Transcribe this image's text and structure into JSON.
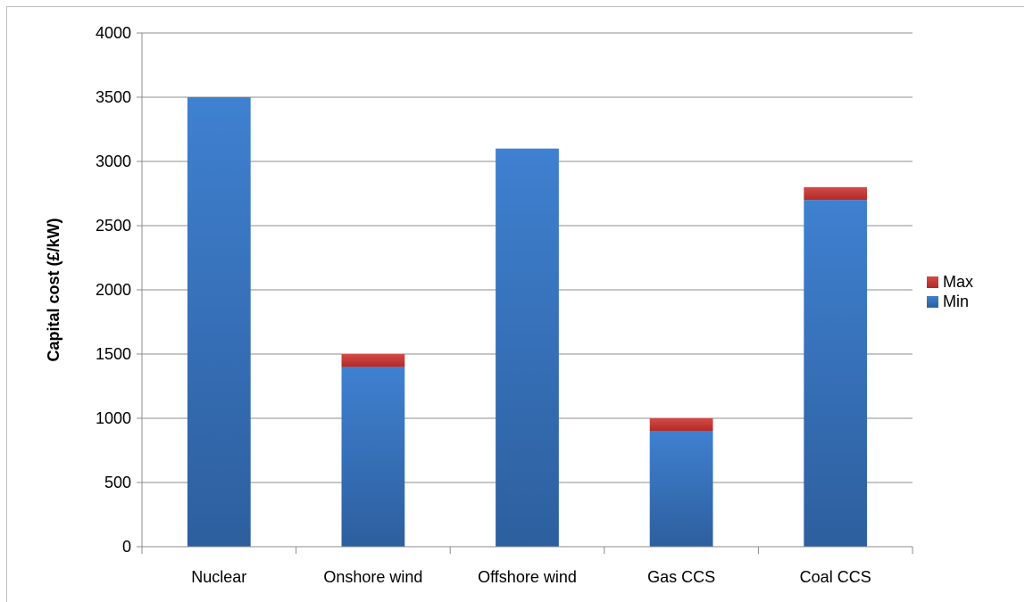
{
  "chart_data": {
    "type": "bar",
    "stacked": true,
    "title": "",
    "xlabel": "",
    "ylabel": "Capital cost (£/kW)",
    "ylim": [
      0,
      4000
    ],
    "yticks": [
      0,
      500,
      1000,
      1500,
      2000,
      2500,
      3000,
      3500,
      4000
    ],
    "grid": true,
    "legend_position": "right",
    "categories": [
      "Nuclear",
      "Onshore wind",
      "Offshore wind",
      "Gas CCS",
      "Coal CCS"
    ],
    "series": [
      {
        "name": "Min",
        "values": [
          3500,
          1400,
          3100,
          900,
          2700
        ],
        "color": "#3a77c4"
      },
      {
        "name": "Max",
        "values": [
          0,
          100,
          0,
          100,
          100
        ],
        "color": "#c0302f"
      }
    ],
    "legend": [
      {
        "name": "Max",
        "color": "#c0302f"
      },
      {
        "name": "Min",
        "color": "#3a77c4"
      }
    ]
  }
}
